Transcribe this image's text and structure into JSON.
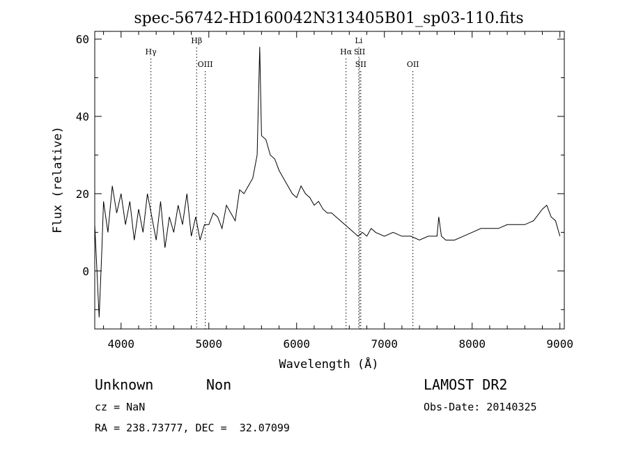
{
  "chart_data": {
    "type": "line",
    "title": "spec-56742-HD160042N313405B01_sp03-110.fits",
    "xlabel": "Wavelength (Å)",
    "ylabel": "Flux (relative)",
    "xlim": [
      3700,
      9050
    ],
    "ylim": [
      -15,
      62
    ],
    "x_ticks": [
      4000,
      5000,
      6000,
      7000,
      8000,
      9000
    ],
    "y_ticks": [
      0,
      20,
      40,
      60
    ],
    "grid": false,
    "series": [
      {
        "x": [
          3700,
          3750,
          3780,
          3800,
          3850,
          3900,
          3950,
          4000,
          4050,
          4100,
          4150,
          4200,
          4250,
          4300,
          4350,
          4400,
          4450,
          4500,
          4550,
          4600,
          4650,
          4700,
          4750,
          4800,
          4850,
          4900,
          4950,
          5000,
          5050,
          5100,
          5150,
          5200,
          5250,
          5300,
          5350,
          5400,
          5450,
          5500,
          5550,
          5580,
          5600,
          5650,
          5700,
          5750,
          5800,
          5850,
          5900,
          5950,
          6000,
          6050,
          6100,
          6150,
          6200,
          6250,
          6300,
          6350,
          6400,
          6450,
          6500,
          6550,
          6600,
          6650,
          6700,
          6750,
          6800,
          6850,
          6900,
          7000,
          7100,
          7200,
          7300,
          7400,
          7500,
          7600,
          7620,
          7650,
          7700,
          7800,
          7900,
          8000,
          8100,
          8200,
          8300,
          8400,
          8500,
          8600,
          8700,
          8800,
          8850,
          8900,
          8950,
          9000
        ],
        "y": [
          12,
          -12,
          5,
          18,
          10,
          22,
          15,
          20,
          12,
          18,
          8,
          16,
          10,
          20,
          14,
          8,
          18,
          6,
          14,
          10,
          17,
          12,
          20,
          9,
          14,
          8,
          12,
          12,
          15,
          14,
          11,
          17,
          15,
          13,
          21,
          20,
          22,
          24,
          30,
          58,
          35,
          34,
          30,
          29,
          26,
          24,
          22,
          20,
          19,
          22,
          20,
          19,
          17,
          18,
          16,
          15,
          15,
          14,
          13,
          12,
          11,
          10,
          9,
          10,
          9,
          11,
          10,
          9,
          10,
          9,
          9,
          8,
          9,
          9,
          14,
          9,
          8,
          8,
          9,
          10,
          11,
          11,
          11,
          12,
          12,
          12,
          13,
          16,
          17,
          14,
          13,
          9
        ]
      }
    ],
    "line_markers": [
      {
        "label": "Hγ",
        "x": 4340,
        "row": 2
      },
      {
        "label": "Hβ",
        "x": 4861,
        "row": 1
      },
      {
        "label": "OIII",
        "x": 4959,
        "row": 3
      },
      {
        "label": "Hα",
        "x": 6563,
        "row": 2
      },
      {
        "label": "Li",
        "x": 6708,
        "row": 1
      },
      {
        "label": "SII",
        "x": 6717,
        "row": 2
      },
      {
        "label": "SII",
        "x": 6731,
        "row": 3
      },
      {
        "label": "OII",
        "x": 7325,
        "row": 3
      }
    ]
  },
  "info": {
    "object_class": "Unknown",
    "subclass": "Non",
    "survey": "LAMOST DR2",
    "cz": "cz = NaN",
    "obs_date": "Obs-Date: 20140325",
    "coords": "RA = 238.73777, DEC =  32.07099"
  }
}
